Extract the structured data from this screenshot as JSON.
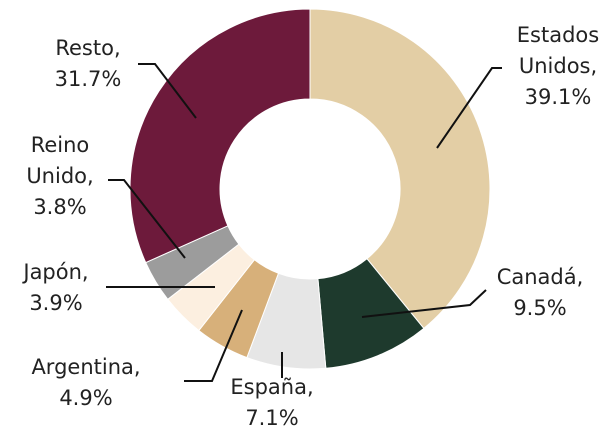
{
  "chart_data": {
    "type": "donut",
    "categories": [
      "Estados Unidos,",
      "Canadá,",
      "España,",
      "Argentina,",
      "Japón,",
      "Reino Unido,",
      "Resto,"
    ],
    "values": [
      39.1,
      9.5,
      7.1,
      4.9,
      3.9,
      3.8,
      31.7
    ],
    "value_labels": [
      "39.1%",
      "9.5%",
      "7.1%",
      "4.9%",
      "3.9%",
      "3.8%",
      "31.7%"
    ],
    "colors": [
      "#e3cea5",
      "#1e3a2d",
      "#e6e6e6",
      "#d7b07a",
      "#fcefe0",
      "#9c9c9c",
      "#6d1a3b"
    ]
  }
}
